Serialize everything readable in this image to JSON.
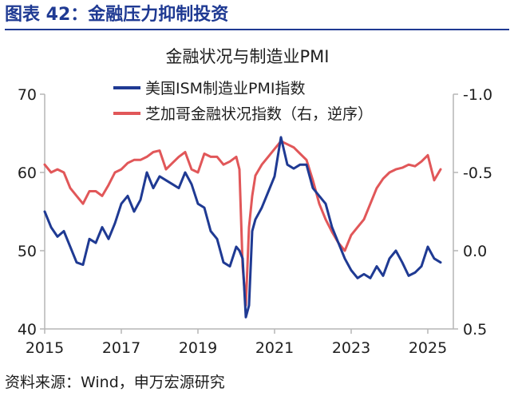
{
  "figure": {
    "title": "图表 42：金融压力抑制投资",
    "source": "资料来源：Wind，申万宏源研究"
  },
  "chart_data": {
    "type": "line",
    "title": "金融状况与制造业PMI",
    "x_ticks": [
      "2015",
      "2017",
      "2019",
      "2021",
      "2023",
      "2025"
    ],
    "y_left": {
      "lim": [
        40,
        70
      ],
      "ticks": [
        40,
        50,
        60,
        70
      ]
    },
    "y_right": {
      "lim": [
        0.5,
        -1.0
      ],
      "ticks": [
        -1.0,
        -0.5,
        0.0,
        0.5
      ],
      "tick_labels": [
        "-1.0",
        "-0.5",
        "0.0",
        "0.5"
      ],
      "inverted": true
    },
    "grid": false,
    "legend_position": "top-center",
    "series": [
      {
        "name": "美国ISM制造业PMI指数",
        "axis": "left",
        "color": "#1f3a93",
        "x": [
          "2015-01",
          "2015-03",
          "2015-05",
          "2015-07",
          "2015-09",
          "2015-11",
          "2016-01",
          "2016-03",
          "2016-05",
          "2016-07",
          "2016-09",
          "2016-11",
          "2017-01",
          "2017-03",
          "2017-05",
          "2017-07",
          "2017-09",
          "2017-11",
          "2018-01",
          "2018-03",
          "2018-05",
          "2018-07",
          "2018-09",
          "2018-11",
          "2019-01",
          "2019-03",
          "2019-05",
          "2019-07",
          "2019-09",
          "2019-11",
          "2020-01",
          "2020-02",
          "2020-03",
          "2020-04",
          "2020-05",
          "2020-06",
          "2020-07",
          "2020-09",
          "2020-11",
          "2021-01",
          "2021-03",
          "2021-05",
          "2021-07",
          "2021-09",
          "2021-11",
          "2022-01",
          "2022-03",
          "2022-05",
          "2022-07",
          "2022-09",
          "2022-11",
          "2023-01",
          "2023-03",
          "2023-05",
          "2023-07",
          "2023-09",
          "2023-11",
          "2024-01",
          "2024-03",
          "2024-05",
          "2024-07",
          "2024-09",
          "2024-11",
          "2025-01",
          "2025-03",
          "2025-05"
        ],
        "values": [
          55.0,
          53.0,
          51.8,
          52.5,
          50.5,
          48.5,
          48.2,
          51.5,
          51.0,
          53.0,
          51.5,
          53.5,
          56.0,
          57.0,
          55.0,
          56.5,
          60.0,
          58.0,
          59.5,
          59.0,
          58.5,
          58.0,
          60.0,
          58.5,
          56.0,
          55.5,
          52.5,
          51.5,
          48.5,
          48.0,
          50.5,
          50.0,
          49.0,
          41.5,
          43.0,
          52.5,
          54.0,
          55.5,
          57.5,
          59.5,
          64.5,
          61.0,
          60.5,
          61.0,
          61.0,
          58.0,
          57.0,
          56.0,
          53.0,
          51.0,
          49.0,
          47.5,
          46.5,
          47.0,
          46.5,
          48.0,
          46.8,
          49.0,
          50.0,
          48.5,
          46.8,
          47.2,
          48.0,
          50.5,
          49.0,
          48.5
        ]
      },
      {
        "name": "芝加哥金融状况指数（右，逆序）",
        "axis": "right",
        "color": "#e15759",
        "x": [
          "2015-01",
          "2015-03",
          "2015-05",
          "2015-07",
          "2015-09",
          "2015-11",
          "2016-01",
          "2016-03",
          "2016-05",
          "2016-07",
          "2016-09",
          "2016-11",
          "2017-01",
          "2017-03",
          "2017-05",
          "2017-07",
          "2017-09",
          "2017-11",
          "2018-01",
          "2018-03",
          "2018-05",
          "2018-07",
          "2018-09",
          "2018-11",
          "2019-01",
          "2019-03",
          "2019-05",
          "2019-07",
          "2019-09",
          "2019-11",
          "2020-01",
          "2020-02",
          "2020-03",
          "2020-04",
          "2020-05",
          "2020-06",
          "2020-07",
          "2020-09",
          "2020-11",
          "2021-01",
          "2021-03",
          "2021-05",
          "2021-07",
          "2021-09",
          "2021-11",
          "2022-01",
          "2022-03",
          "2022-05",
          "2022-07",
          "2022-09",
          "2022-11",
          "2023-01",
          "2023-03",
          "2023-05",
          "2023-07",
          "2023-09",
          "2023-11",
          "2024-01",
          "2024-03",
          "2024-05",
          "2024-07",
          "2024-09",
          "2024-11",
          "2025-01",
          "2025-03",
          "2025-05"
        ],
        "values": [
          -0.55,
          -0.5,
          -0.52,
          -0.5,
          -0.4,
          -0.35,
          -0.3,
          -0.38,
          -0.38,
          -0.35,
          -0.42,
          -0.5,
          -0.52,
          -0.56,
          -0.58,
          -0.58,
          -0.6,
          -0.63,
          -0.64,
          -0.52,
          -0.56,
          -0.6,
          -0.63,
          -0.52,
          -0.5,
          -0.62,
          -0.6,
          -0.6,
          -0.55,
          -0.57,
          -0.6,
          -0.52,
          0.1,
          0.35,
          -0.15,
          -0.35,
          -0.48,
          -0.55,
          -0.6,
          -0.65,
          -0.7,
          -0.68,
          -0.66,
          -0.62,
          -0.58,
          -0.45,
          -0.3,
          -0.2,
          -0.12,
          -0.05,
          0.0,
          -0.1,
          -0.15,
          -0.2,
          -0.3,
          -0.4,
          -0.46,
          -0.5,
          -0.52,
          -0.53,
          -0.55,
          -0.54,
          -0.57,
          -0.61,
          -0.45,
          -0.52
        ]
      }
    ]
  }
}
